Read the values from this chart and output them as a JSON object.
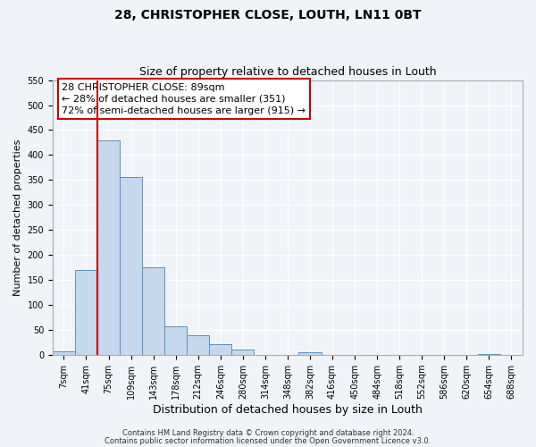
{
  "title": "28, CHRISTOPHER CLOSE, LOUTH, LN11 0BT",
  "subtitle": "Size of property relative to detached houses in Louth",
  "xlabel": "Distribution of detached houses by size in Louth",
  "ylabel": "Number of detached properties",
  "bar_labels": [
    "7sqm",
    "41sqm",
    "75sqm",
    "109sqm",
    "143sqm",
    "178sqm",
    "212sqm",
    "246sqm",
    "280sqm",
    "314sqm",
    "348sqm",
    "382sqm",
    "416sqm",
    "450sqm",
    "484sqm",
    "518sqm",
    "552sqm",
    "586sqm",
    "620sqm",
    "654sqm",
    "688sqm"
  ],
  "bar_heights": [
    8,
    170,
    430,
    356,
    175,
    57,
    40,
    21,
    12,
    0,
    0,
    5,
    0,
    0,
    0,
    0,
    0,
    0,
    0,
    2,
    1
  ],
  "bar_color": "#c5d8ed",
  "bar_edgecolor": "#5a8fc0",
  "vline_x": 2.5,
  "vline_color": "#cc0000",
  "annotation_title": "28 CHRISTOPHER CLOSE: 89sqm",
  "annotation_line1": "← 28% of detached houses are smaller (351)",
  "annotation_line2": "72% of semi-detached houses are larger (915) →",
  "annotation_box_edgecolor": "#cc0000",
  "ylim": [
    0,
    550
  ],
  "yticks": [
    0,
    50,
    100,
    150,
    200,
    250,
    300,
    350,
    400,
    450,
    500,
    550
  ],
  "footer1": "Contains HM Land Registry data © Crown copyright and database right 2024.",
  "footer2": "Contains public sector information licensed under the Open Government Licence v3.0.",
  "bg_color": "#f0f4f8",
  "grid_color": "#ffffff",
  "title_fontsize": 10,
  "subtitle_fontsize": 9,
  "tick_fontsize": 7,
  "ylabel_fontsize": 8,
  "xlabel_fontsize": 9,
  "annotation_fontsize": 8,
  "footer_fontsize": 6
}
